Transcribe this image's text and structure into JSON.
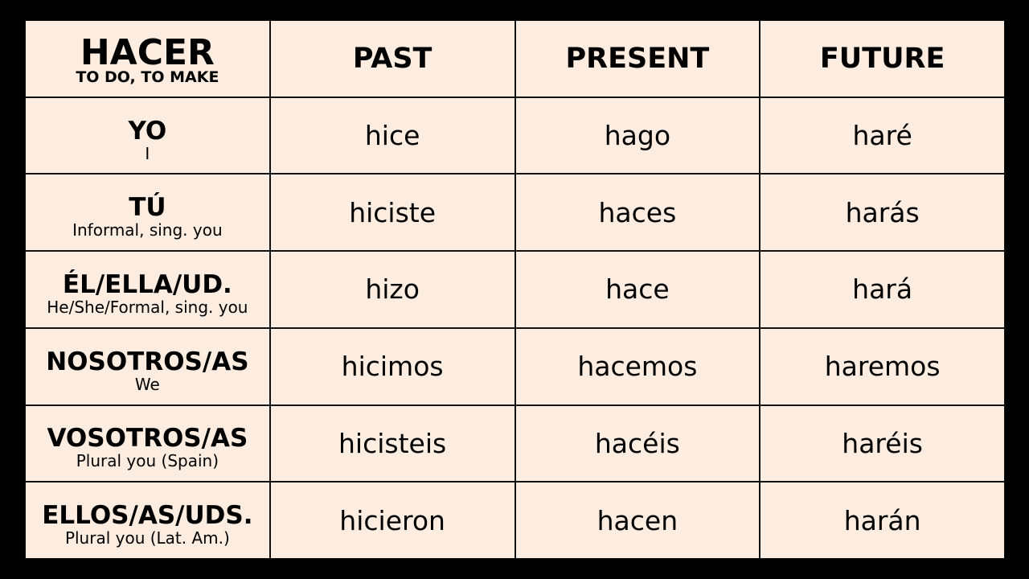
{
  "header": {
    "verb": "HACER",
    "meaning": "TO DO, TO MAKE",
    "columns": [
      "PAST",
      "PRESENT",
      "FUTURE"
    ]
  },
  "rows": [
    {
      "pronoun": "YO",
      "gloss": "I",
      "past": "hice",
      "present": "hago",
      "future": "haré"
    },
    {
      "pronoun": "TÚ",
      "gloss": "Informal, sing. you",
      "past": "hiciste",
      "present": "haces",
      "future": "harás"
    },
    {
      "pronoun": "ÉL/ELLA/UD.",
      "gloss": "He/She/Formal, sing. you",
      "past": "hizo",
      "present": "hace",
      "future": "hará"
    },
    {
      "pronoun": "NOSOTROS/AS",
      "gloss": "We",
      "past": "hicimos",
      "present": "hacemos",
      "future": "haremos"
    },
    {
      "pronoun": "VOSOTROS/AS",
      "gloss": "Plural you (Spain)",
      "past": "hicisteis",
      "present": "hacéis",
      "future": "haréis"
    },
    {
      "pronoun": "ELLOS/AS/UDS.",
      "gloss": "Plural you (Lat. Am.)",
      "past": "hicieron",
      "present": "hacen",
      "future": "harán"
    }
  ],
  "colors": {
    "background": "#000000",
    "cell": "#fdece0",
    "border": "#111111"
  }
}
